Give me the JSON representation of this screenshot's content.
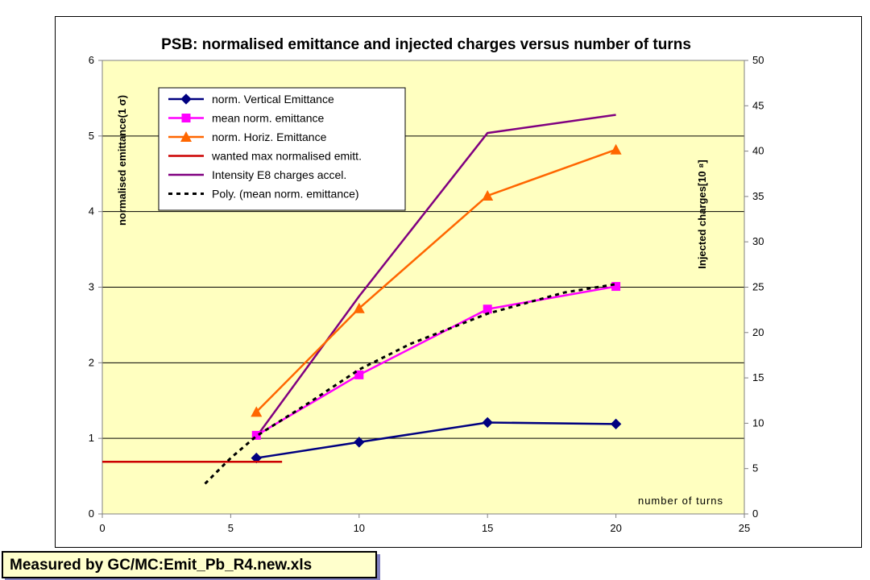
{
  "footer": {
    "text": "Measured by GC/MC:Emit_Pb_R4.new.xls"
  },
  "colors": {
    "plot_bg": "#ffffc0",
    "vertical": "#000080",
    "mean": "#ff00ff",
    "horizontal": "#ff6600",
    "wanted": "#cc0000",
    "intensity": "#800080",
    "poly": "#000000"
  },
  "chart_data": {
    "type": "line",
    "title": "PSB: normalised emittance and injected charges versus number of turns",
    "xlabel": "number of turns",
    "ylabel": "normalised emittance(1 σ)",
    "y2label": "Injected charges[10 ⁸]",
    "xlim": [
      0,
      25
    ],
    "ylim": [
      0,
      6
    ],
    "y2lim": [
      0,
      50
    ],
    "xticks": [
      0,
      5,
      10,
      15,
      20,
      25
    ],
    "yticks": [
      0,
      1,
      2,
      3,
      4,
      5,
      6
    ],
    "y2ticks": [
      0,
      5,
      10,
      15,
      20,
      25,
      30,
      35,
      40,
      45,
      50
    ],
    "grid": "horizontal",
    "legend_position": "top-left",
    "series": [
      {
        "name": "norm. Vertical Emittance",
        "axis": "left",
        "marker": "diamond",
        "color": "#000080",
        "x": [
          6,
          10,
          15,
          20
        ],
        "y": [
          0.74,
          0.95,
          1.21,
          1.19
        ]
      },
      {
        "name": "mean  norm. emittance",
        "axis": "left",
        "marker": "square",
        "color": "#ff00ff",
        "x": [
          6,
          10,
          15,
          20
        ],
        "y": [
          1.04,
          1.84,
          2.71,
          3.01
        ]
      },
      {
        "name": "norm. Horiz. Emittance",
        "axis": "left",
        "marker": "triangle",
        "color": "#ff6600",
        "x": [
          6,
          10,
          15,
          20
        ],
        "y": [
          1.35,
          2.72,
          4.21,
          4.82
        ]
      },
      {
        "name": "wanted max normalised emitt.",
        "axis": "left",
        "marker": "none",
        "color": "#cc0000",
        "x": [
          0,
          7
        ],
        "y": [
          0.69,
          0.69
        ]
      },
      {
        "name": "Intensity  E8 charges accel.",
        "axis": "right",
        "marker": "none",
        "color": "#800080",
        "x": [
          6,
          10,
          15,
          20
        ],
        "y": [
          8.5,
          24.0,
          42.0,
          44.0
        ]
      },
      {
        "name": "Poly. (mean  norm. emittance)",
        "axis": "left",
        "marker": "none",
        "dashed": true,
        "color": "#000000",
        "x": [
          4,
          5,
          6,
          8,
          10,
          12,
          15,
          18,
          20
        ],
        "y": [
          0.4,
          0.74,
          1.03,
          1.46,
          1.91,
          2.25,
          2.65,
          2.93,
          3.04
        ]
      }
    ]
  }
}
